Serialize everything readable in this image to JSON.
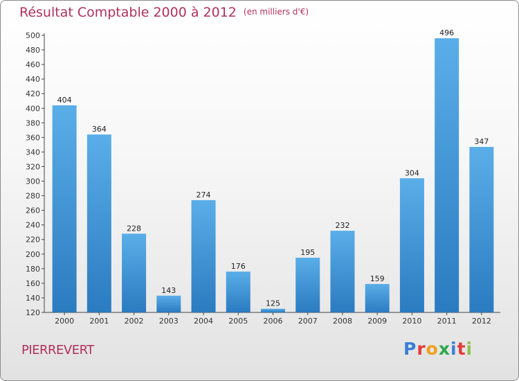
{
  "header": {
    "title": "Résultat Comptable 2000 à 2012",
    "subtitle": "(en milliers d'€)"
  },
  "footer": {
    "commune": "PIERREVERT",
    "logo_letters": [
      {
        "char": "P",
        "color": "#3a7fd6"
      },
      {
        "char": "r",
        "color": "#e33b3b"
      },
      {
        "char": "o",
        "color": "#f0a020"
      },
      {
        "char": "x",
        "color": "#2ea84a"
      },
      {
        "char": "i",
        "color": "#3a7fd6"
      },
      {
        "char": "t",
        "color": "#e33b3b"
      },
      {
        "char": "i",
        "color": "#8bc34a"
      }
    ]
  },
  "colors": {
    "bar_top": "#5aaee8",
    "bar_bottom": "#2a7bc0",
    "title": "#b0305c"
  },
  "chart_data": {
    "type": "bar",
    "title": "Résultat Comptable 2000 à 2012",
    "subtitle": "(en milliers d'€)",
    "categories": [
      "2000",
      "2001",
      "2002",
      "2003",
      "2004",
      "2005",
      "2006",
      "2007",
      "2008",
      "2009",
      "2010",
      "2011",
      "2012"
    ],
    "values": [
      404,
      364,
      228,
      143,
      274,
      176,
      125,
      195,
      232,
      159,
      304,
      496,
      347
    ],
    "value_labels": [
      "404",
      "364",
      "228",
      "143",
      "274",
      "176",
      "125",
      "195",
      "232",
      "159",
      "304",
      "496",
      "347"
    ],
    "ylim": [
      120,
      500
    ],
    "yticks": [
      120,
      140,
      160,
      180,
      200,
      220,
      240,
      260,
      280,
      300,
      320,
      340,
      360,
      380,
      400,
      420,
      440,
      460,
      480,
      500
    ],
    "grid": false,
    "xlabel": "",
    "ylabel": ""
  }
}
